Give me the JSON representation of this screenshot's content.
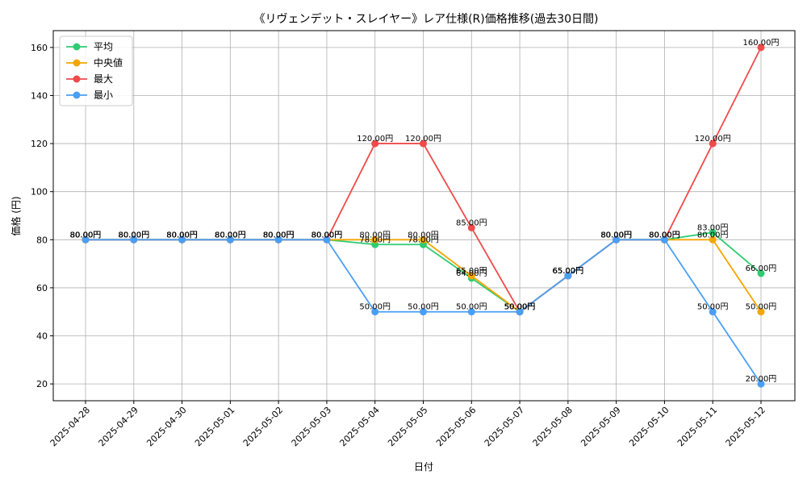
{
  "chart_data": {
    "type": "line",
    "title": "《リヴェンデット・スレイヤー》レア仕様(R)価格推移(過去30日間)",
    "xlabel": "日付",
    "ylabel": "価格 (円)",
    "categories": [
      "2025-04-28",
      "2025-04-29",
      "2025-04-30",
      "2025-05-01",
      "2025-05-02",
      "2025-05-03",
      "2025-05-04",
      "2025-05-05",
      "2025-05-06",
      "2025-05-07",
      "2025-05-08",
      "2025-05-09",
      "2025-05-10",
      "2025-05-11",
      "2025-05-12"
    ],
    "ylim": [
      13,
      167
    ],
    "yticks": [
      20,
      40,
      60,
      80,
      100,
      120,
      140,
      160
    ],
    "grid": true,
    "legend_position": "top-left",
    "value_suffix": "円",
    "series": [
      {
        "name": "平均",
        "color": "#2ecc71",
        "values": [
          80,
          80,
          80,
          80,
          80,
          80,
          78,
          78,
          64,
          50,
          65,
          80,
          80,
          83,
          66
        ]
      },
      {
        "name": "中央値",
        "color": "#f5a500",
        "values": [
          80,
          80,
          80,
          80,
          80,
          80,
          80,
          80,
          65,
          50,
          65,
          80,
          80,
          80,
          50
        ]
      },
      {
        "name": "最大",
        "color": "#f04a4a",
        "values": [
          80,
          80,
          80,
          80,
          80,
          80,
          120,
          120,
          85,
          50,
          65,
          80,
          80,
          120,
          160
        ]
      },
      {
        "name": "最小",
        "color": "#4a9ff5",
        "values": [
          80,
          80,
          80,
          80,
          80,
          80,
          50,
          50,
          50,
          50,
          65,
          80,
          80,
          50,
          20
        ]
      }
    ]
  }
}
